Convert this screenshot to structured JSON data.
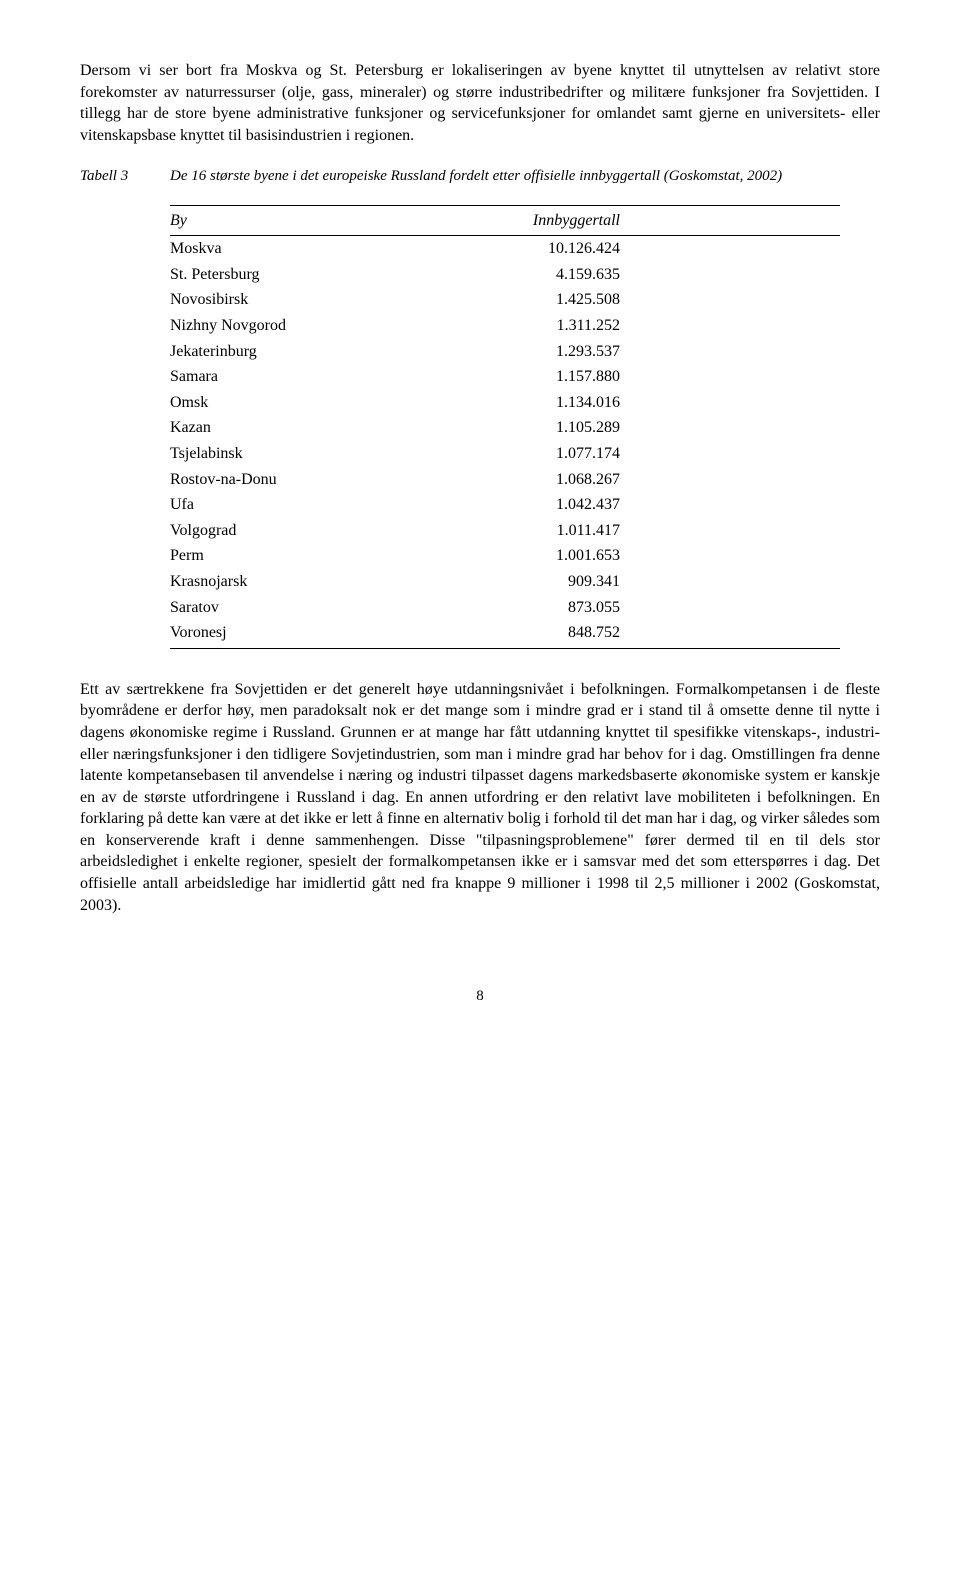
{
  "paragraph1": "Dersom vi ser bort fra Moskva og St. Petersburg er lokaliseringen av byene knyttet til utnyttelsen av relativt store forekomster av naturressurser (olje, gass, mineraler) og større industribedrifter og militære funksjoner fra Sovjettiden. I tillegg har de store byene administrative funksjoner og servicefunksjoner for omlandet samt gjerne en universitets- eller vitenskapsbase knyttet til basisindustrien i regionen.",
  "table": {
    "label": "Tabell 3",
    "caption": "De 16 største byene i det europeiske Russland fordelt etter offisielle innbyggertall (Goskomstat, 2002)",
    "columns": [
      "By",
      "Innbyggertall"
    ],
    "rows": [
      [
        "Moskva",
        "10.126.424"
      ],
      [
        "St. Petersburg",
        "4.159.635"
      ],
      [
        "Novosibirsk",
        "1.425.508"
      ],
      [
        "Nizhny Novgorod",
        "1.311.252"
      ],
      [
        "Jekaterinburg",
        "1.293.537"
      ],
      [
        "Samara",
        "1.157.880"
      ],
      [
        "Omsk",
        "1.134.016"
      ],
      [
        "Kazan",
        "1.105.289"
      ],
      [
        "Tsjelabinsk",
        "1.077.174"
      ],
      [
        "Rostov-na-Donu",
        "1.068.267"
      ],
      [
        "Ufa",
        "1.042.437"
      ],
      [
        "Volgograd",
        "1.011.417"
      ],
      [
        "Perm",
        "1.001.653"
      ],
      [
        "Krasnojarsk",
        "909.341"
      ],
      [
        "Saratov",
        "873.055"
      ],
      [
        "Voronesj",
        "848.752"
      ]
    ]
  },
  "paragraph2": "Ett av særtrekkene fra Sovjettiden er det generelt høye utdanningsnivået i befolkningen. Formalkompetansen i de fleste byområdene er derfor høy, men paradoksalt nok er det mange som i mindre grad er i stand til å omsette denne til nytte i dagens økonomiske regime i Russland. Grunnen er at mange har fått utdanning knyttet til spesifikke vitenskaps-, industri- eller næringsfunksjoner i den tidligere Sovjetindustrien, som man i mindre grad har behov for i dag. Omstillingen fra denne latente kompetansebasen til anvendelse i næring og industri tilpasset dagens markedsbaserte økonomiske system er kanskje en av de største utfordringene i Russland i dag. En annen utfordring er den relativt lave mobiliteten i befolkningen. En forklaring på dette kan være at det ikke er lett å finne en alternativ bolig i forhold til det man har i dag, og virker således som en konserverende kraft i denne sammenhengen. Disse \"tilpasningsproblemene\" fører dermed til en til dels stor arbeidsledighet i enkelte regioner, spesielt der formalkompetansen ikke er i samsvar med det som etterspørres i dag. Det offisielle antall arbeidsledige har imidlertid gått ned fra knappe 9 millioner i 1998 til 2,5 millioner i 2002 (Goskomstat, 2003).",
  "pageNumber": "8"
}
